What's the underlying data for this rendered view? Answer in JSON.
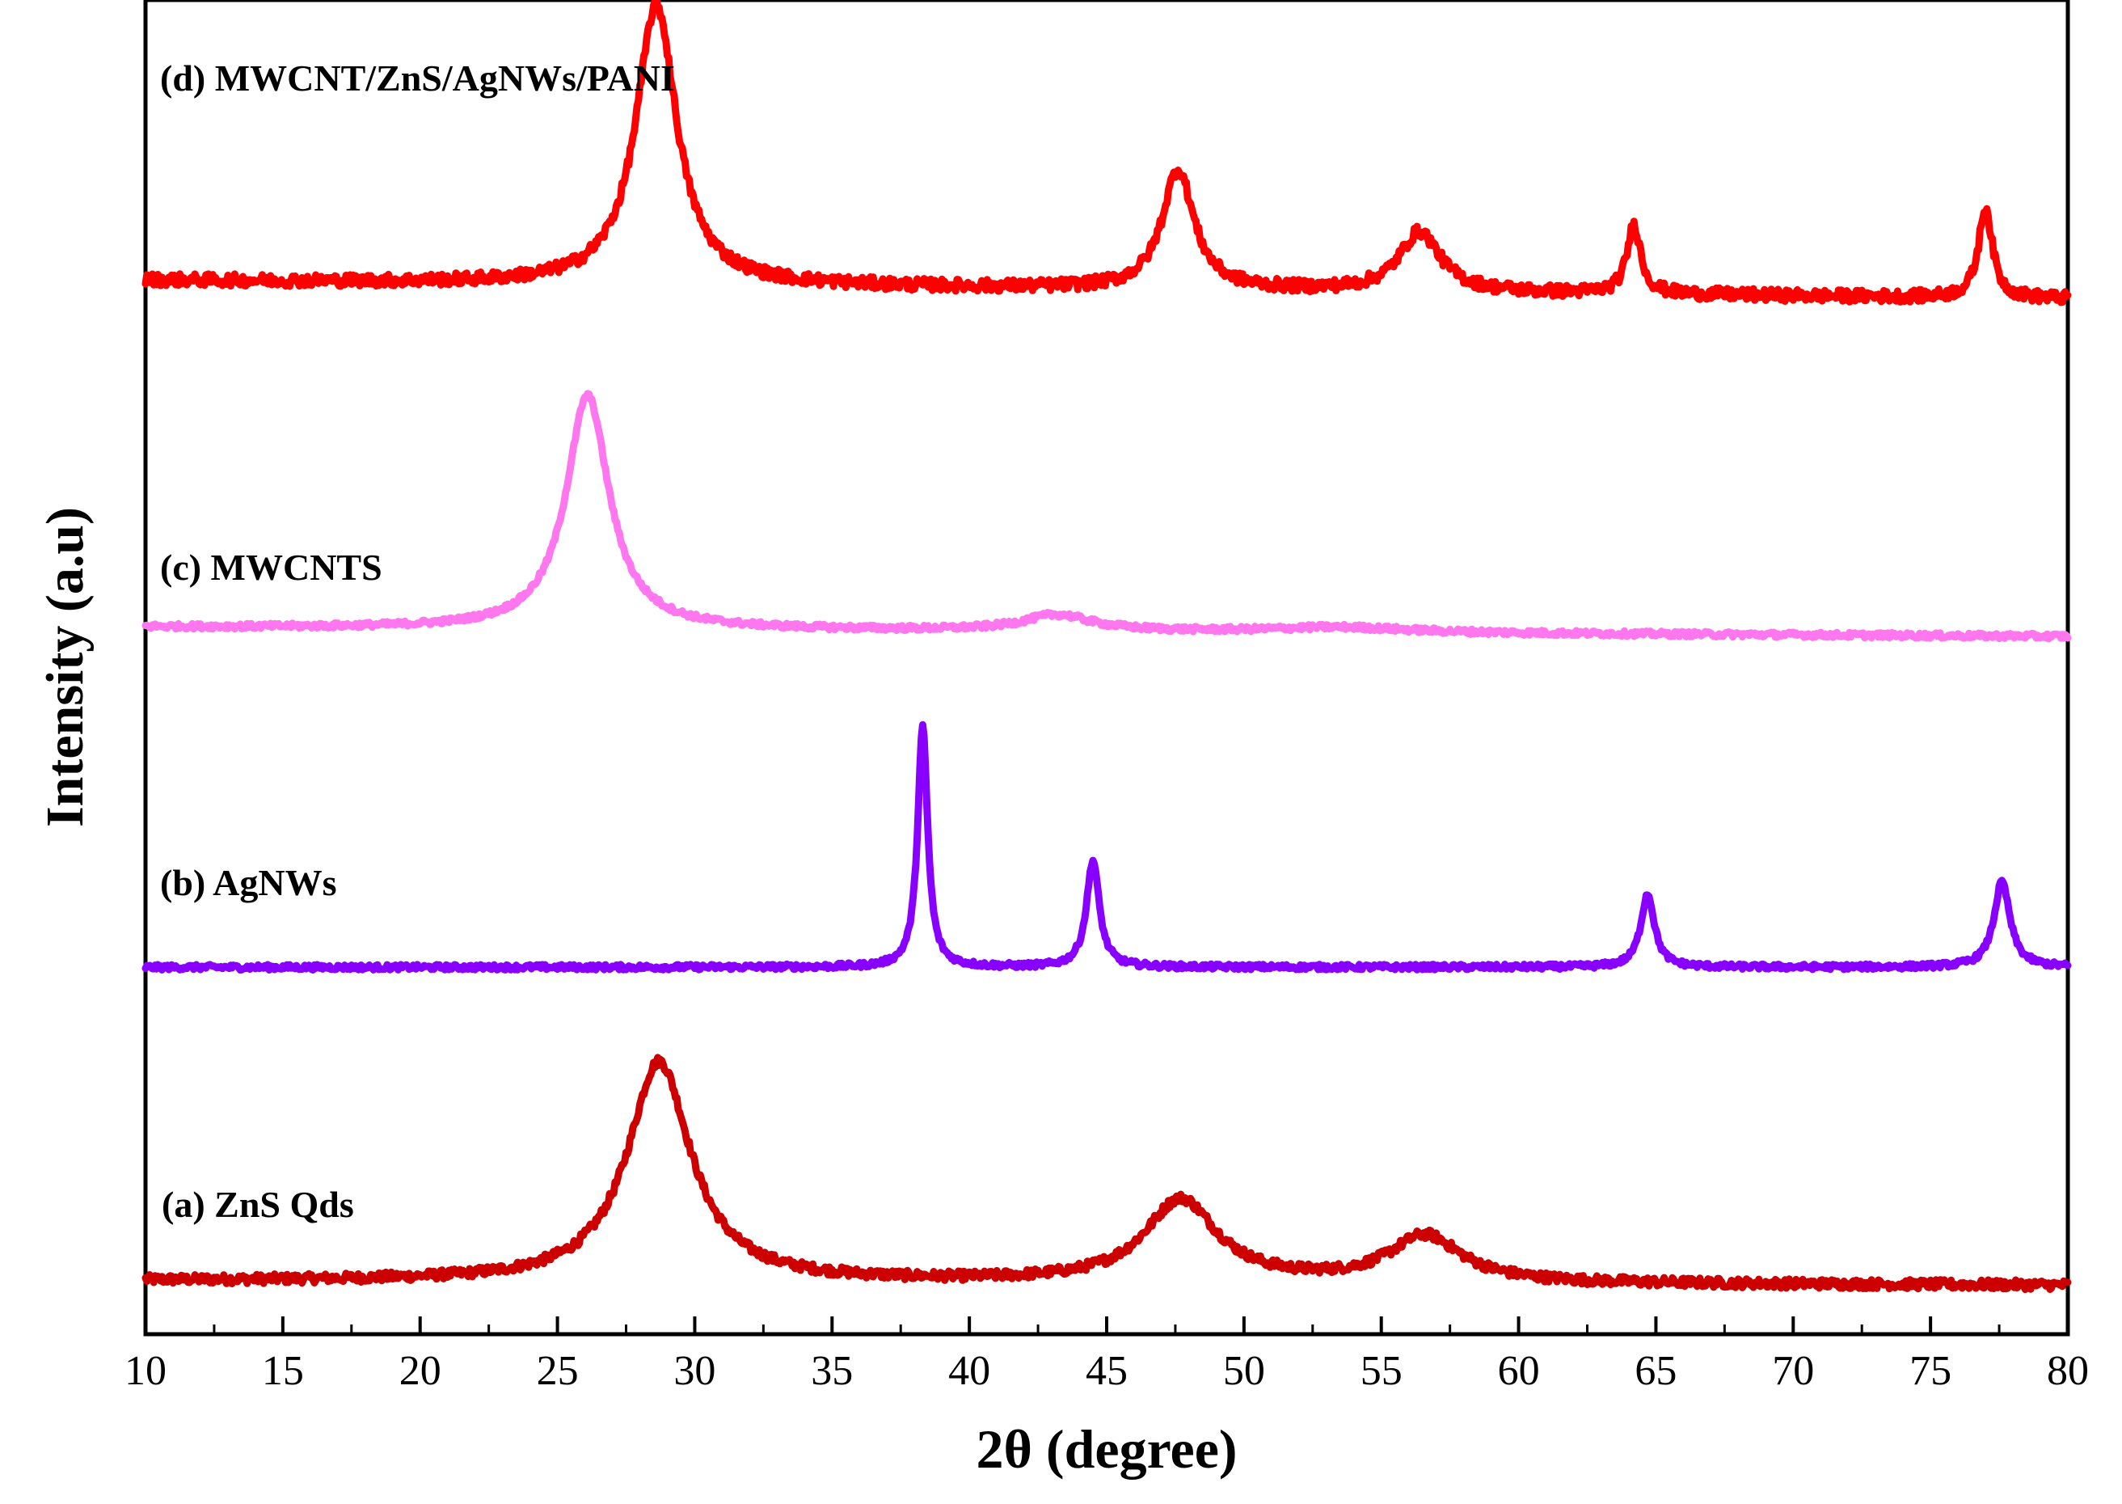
{
  "chart_data": {
    "type": "line",
    "title": "",
    "xlabel": "2θ (degree)",
    "ylabel": "Intensity (a.u)",
    "xlim": [
      10,
      80
    ],
    "ylim": [
      0,
      100
    ],
    "y_ticks_visible": false,
    "grid": false,
    "x_major_ticks": [
      10,
      15,
      20,
      25,
      30,
      35,
      40,
      45,
      50,
      55,
      60,
      65,
      70,
      75,
      80
    ],
    "x_tick_labels": [
      "10",
      "15",
      "20",
      "25",
      "30",
      "35",
      "40",
      "45",
      "50",
      "55",
      "60",
      "65",
      "70",
      "75",
      "80"
    ],
    "series": [
      {
        "name": "(a) ZnS Qds",
        "color": "#cc0000",
        "baseline": 4.0,
        "baseline_slope": -0.005,
        "noise": 0.35,
        "peaks": [
          {
            "x": 28.7,
            "height": 16.5,
            "width": 1.4
          },
          {
            "x": 47.7,
            "height": 6.2,
            "width": 1.6
          },
          {
            "x": 56.6,
            "height": 3.5,
            "width": 1.6
          }
        ]
      },
      {
        "name": "(b) AgNWs",
        "color": "#8800ff",
        "baseline": 27.5,
        "baseline_slope": 0.0,
        "noise": 0.2,
        "peaks": [
          {
            "x": 38.3,
            "height": 18.0,
            "width": 0.22
          },
          {
            "x": 44.5,
            "height": 8.0,
            "width": 0.28
          },
          {
            "x": 64.7,
            "height": 5.5,
            "width": 0.3
          },
          {
            "x": 77.6,
            "height": 6.4,
            "width": 0.35
          }
        ]
      },
      {
        "name": "(c) MWCNTS",
        "color": "#ff77ee",
        "baseline": 53.0,
        "baseline_slope": -0.01,
        "noise": 0.2,
        "peaks": [
          {
            "x": 26.1,
            "height": 17.5,
            "width": 0.95
          },
          {
            "x": 43.2,
            "height": 1.2,
            "width": 1.5
          },
          {
            "x": 53.5,
            "height": 0.4,
            "width": 3.0
          }
        ]
      },
      {
        "name": "(d) MWCNT/ZnS/AgNWs/PANI",
        "color": "#ff0000",
        "baseline": 79.0,
        "baseline_slope": -0.02,
        "noise": 0.45,
        "peaks": [
          {
            "x": 28.6,
            "height": 21.0,
            "width": 0.9
          },
          {
            "x": 47.6,
            "height": 9.0,
            "width": 0.7
          },
          {
            "x": 56.4,
            "height": 4.5,
            "width": 0.9
          },
          {
            "x": 64.2,
            "height": 5.2,
            "width": 0.3
          },
          {
            "x": 77.0,
            "height": 6.8,
            "width": 0.3
          }
        ]
      }
    ]
  }
}
